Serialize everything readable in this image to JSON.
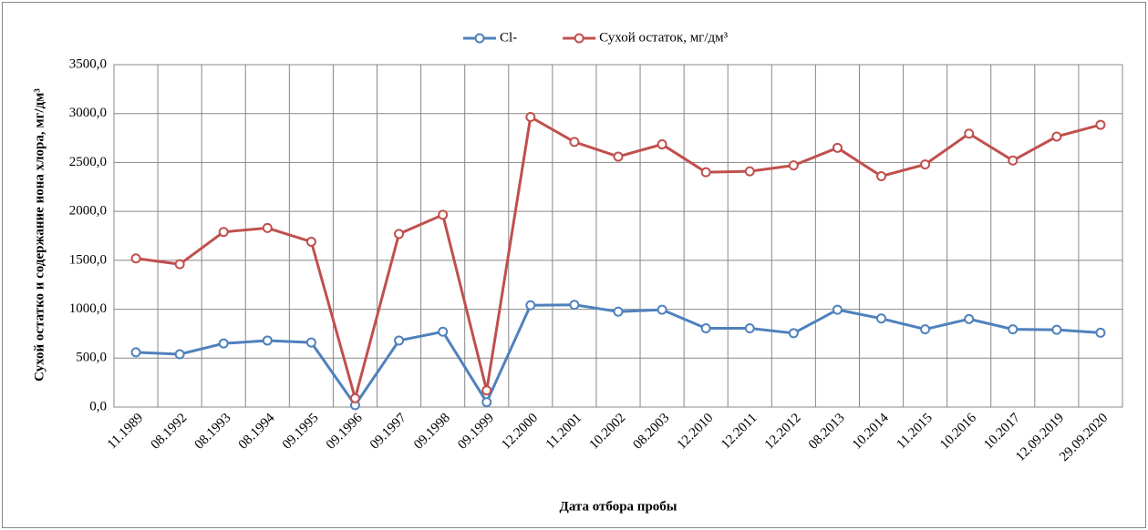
{
  "chart_data": {
    "type": "line",
    "x_label": "Дата отбора пробы",
    "y_label": "Сухой остатко и содержание иона хлора, мг/дм³",
    "categories": [
      "11.1989",
      "08.1992",
      "08.1993",
      "08.1994",
      "09.1995",
      "09.1996",
      "09.1997",
      "09.1998",
      "09.1999",
      "12.2000",
      "11.2001",
      "10.2002",
      "08.2003",
      "12.2010",
      "12.2011",
      "12.2012",
      "08.2013",
      "10.2014",
      "11.2015",
      "10.2016",
      "10.2017",
      "12.09.2019",
      "29.09.2020"
    ],
    "series": [
      {
        "name": "Cl-",
        "color": "#4f81bd",
        "values": [
          560,
          540,
          650,
          680,
          660,
          20,
          680,
          770,
          50,
          1040,
          1045,
          975,
          995,
          805,
          805,
          755,
          995,
          905,
          795,
          900,
          795,
          790,
          760
        ]
      },
      {
        "name": "Сухой остаток, мг/дм³",
        "color": "#c0504d",
        "values": [
          1520,
          1460,
          1790,
          1830,
          1690,
          90,
          1770,
          1965,
          170,
          2965,
          2710,
          2560,
          2685,
          2400,
          2410,
          2470,
          2650,
          2360,
          2480,
          2795,
          2520,
          2765,
          2885
        ]
      }
    ],
    "ylim": [
      0,
      3500
    ],
    "yticks": [
      {
        "value": 0,
        "label": "0,0"
      },
      {
        "value": 500,
        "label": "500,0"
      },
      {
        "value": 1000,
        "label": "1000,0"
      },
      {
        "value": 1500,
        "label": "1500,0"
      },
      {
        "value": 2000,
        "label": "2000,0"
      },
      {
        "value": 2500,
        "label": "2500,0"
      },
      {
        "value": 3000,
        "label": "3000,0"
      },
      {
        "value": 3500,
        "label": "3500,0"
      }
    ],
    "grid": true,
    "legend": "top"
  }
}
